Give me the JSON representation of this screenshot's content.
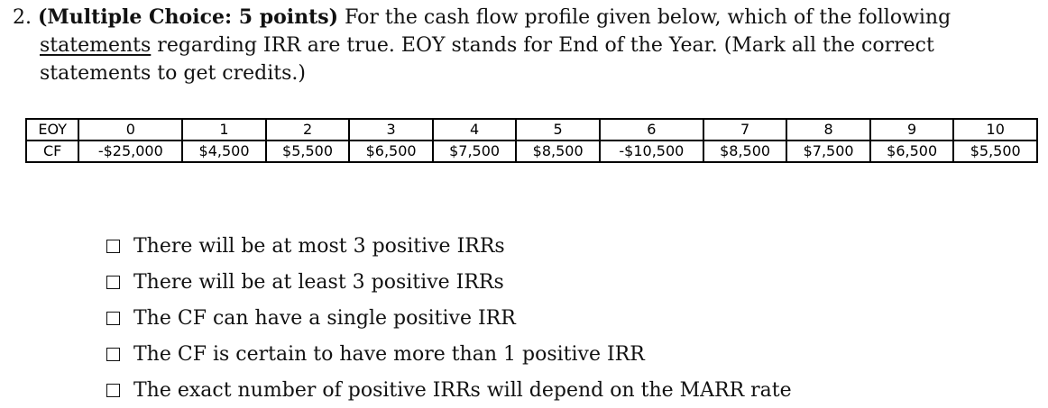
{
  "question": {
    "number": "2.",
    "label_bold": "(Multiple Choice: 5 points)",
    "line1_rest": "For the cash flow profile given below, which of the following",
    "line2_underlined": "statements",
    "line2_rest": "regarding IRR are true.  EOY stands for End of the Year.  (Mark all the correct",
    "line3": "statements to get credits.)"
  },
  "table": {
    "row1_label": "EOY",
    "row2_label": "CF",
    "eoy": [
      "0",
      "1",
      "2",
      "3",
      "4",
      "5",
      "6",
      "7",
      "8",
      "9",
      "10"
    ],
    "cf": [
      "-$25,000",
      "$4,500",
      "$5,500",
      "$6,500",
      "$7,500",
      "$8,500",
      "-$10,500",
      "$8,500",
      "$7,500",
      "$6,500",
      "$5,500"
    ]
  },
  "options": [
    "There will be at most 3 positive IRRs",
    "There will be at least 3 positive IRRs",
    "The CF can have a single positive IRR",
    "The CF is certain to have more than 1 positive IRR",
    "The exact number of positive IRRs will depend on the MARR rate"
  ]
}
